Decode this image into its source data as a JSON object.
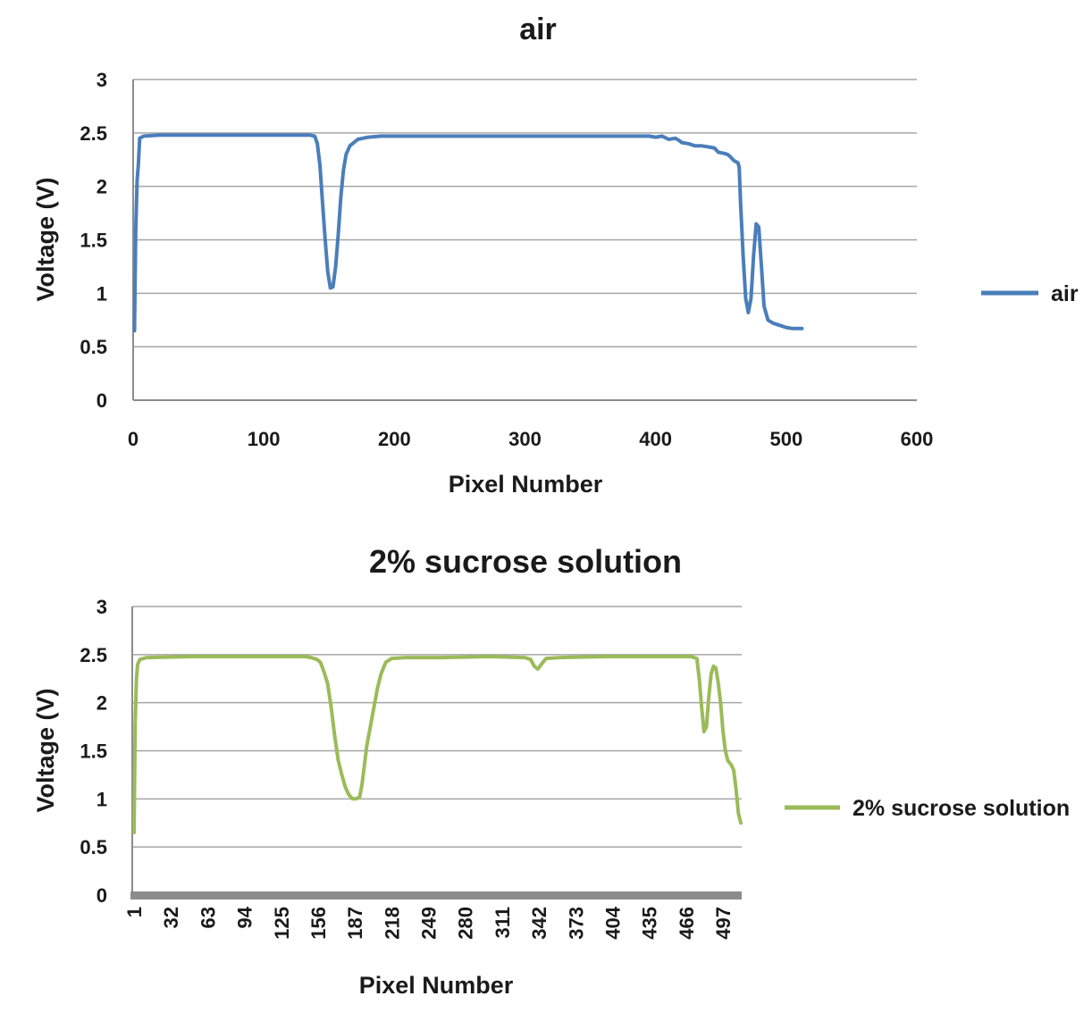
{
  "chart_data": [
    {
      "type": "line",
      "title": "air",
      "xlabel": "Pixel Number",
      "ylabel": "Voltage (V)",
      "xlim": [
        0,
        600
      ],
      "ylim": [
        0,
        3
      ],
      "x_ticks": [
        "0",
        "100",
        "200",
        "300",
        "400",
        "500",
        "600"
      ],
      "y_ticks": [
        "0",
        "0.5",
        "1",
        "1.5",
        "2",
        "2.5",
        "3"
      ],
      "grid": "horizontal",
      "legend": "right",
      "series": [
        {
          "name": "air",
          "color": "#4a7ebb",
          "points": [
            [
              1,
              0.65
            ],
            [
              2,
              1.6
            ],
            [
              3,
              2.05
            ],
            [
              4,
              2.2
            ],
            [
              5,
              2.45
            ],
            [
              8,
              2.47
            ],
            [
              20,
              2.48
            ],
            [
              60,
              2.48
            ],
            [
              100,
              2.48
            ],
            [
              135,
              2.48
            ],
            [
              139,
              2.47
            ],
            [
              141,
              2.4
            ],
            [
              143,
              2.2
            ],
            [
              145,
              1.85
            ],
            [
              147,
              1.5
            ],
            [
              149,
              1.2
            ],
            [
              151,
              1.05
            ],
            [
              153,
              1.06
            ],
            [
              155,
              1.25
            ],
            [
              157,
              1.55
            ],
            [
              159,
              1.9
            ],
            [
              161,
              2.15
            ],
            [
              163,
              2.3
            ],
            [
              166,
              2.38
            ],
            [
              172,
              2.44
            ],
            [
              180,
              2.46
            ],
            [
              190,
              2.47
            ],
            [
              230,
              2.47
            ],
            [
              280,
              2.47
            ],
            [
              320,
              2.47
            ],
            [
              360,
              2.47
            ],
            [
              395,
              2.47
            ],
            [
              400,
              2.46
            ],
            [
              405,
              2.47
            ],
            [
              410,
              2.44
            ],
            [
              415,
              2.45
            ],
            [
              418,
              2.43
            ],
            [
              420,
              2.41
            ],
            [
              425,
              2.4
            ],
            [
              430,
              2.38
            ],
            [
              435,
              2.38
            ],
            [
              440,
              2.37
            ],
            [
              445,
              2.36
            ],
            [
              448,
              2.32
            ],
            [
              452,
              2.31
            ],
            [
              455,
              2.3
            ],
            [
              457,
              2.28
            ],
            [
              460,
              2.24
            ],
            [
              463,
              2.22
            ],
            [
              464,
              2.18
            ],
            [
              465,
              1.85
            ],
            [
              467,
              1.35
            ],
            [
              469,
              0.95
            ],
            [
              471,
              0.82
            ],
            [
              473,
              0.95
            ],
            [
              475,
              1.35
            ],
            [
              477,
              1.65
            ],
            [
              479,
              1.62
            ],
            [
              481,
              1.25
            ],
            [
              483,
              0.88
            ],
            [
              486,
              0.75
            ],
            [
              490,
              0.72
            ],
            [
              495,
              0.7
            ],
            [
              500,
              0.68
            ],
            [
              505,
              0.67
            ],
            [
              512,
              0.67
            ]
          ]
        }
      ]
    },
    {
      "type": "line",
      "title": "2% sucrose solution",
      "xlabel": "Pixel Number",
      "ylabel": "Voltage (V)",
      "x_categories_range": [
        1,
        512
      ],
      "x_ticks": [
        "1",
        "32",
        "63",
        "94",
        "125",
        "156",
        "187",
        "218",
        "249",
        "280",
        "311",
        "342",
        "373",
        "404",
        "435",
        "466",
        "497"
      ],
      "y_ticks": [
        "0",
        "0.5",
        "1",
        "1.5",
        "2",
        "2.5",
        "3"
      ],
      "ylim": [
        0,
        3
      ],
      "grid": "horizontal",
      "legend": "right",
      "series": [
        {
          "name": "2% sucrose solution",
          "color": "#9bbb59",
          "points": [
            [
              1,
              0.65
            ],
            [
              2,
              1.8
            ],
            [
              3,
              2.25
            ],
            [
              4,
              2.4
            ],
            [
              6,
              2.45
            ],
            [
              12,
              2.47
            ],
            [
              50,
              2.48
            ],
            [
              100,
              2.48
            ],
            [
              145,
              2.48
            ],
            [
              150,
              2.47
            ],
            [
              155,
              2.45
            ],
            [
              158,
              2.42
            ],
            [
              161,
              2.32
            ],
            [
              164,
              2.2
            ],
            [
              167,
              1.95
            ],
            [
              170,
              1.65
            ],
            [
              173,
              1.4
            ],
            [
              176,
              1.25
            ],
            [
              179,
              1.12
            ],
            [
              182,
              1.04
            ],
            [
              185,
              1.0
            ],
            [
              188,
              1.0
            ],
            [
              191,
              1.02
            ],
            [
              193,
              1.15
            ],
            [
              195,
              1.35
            ],
            [
              197,
              1.55
            ],
            [
              200,
              1.75
            ],
            [
              203,
              1.95
            ],
            [
              206,
              2.15
            ],
            [
              209,
              2.3
            ],
            [
              213,
              2.42
            ],
            [
              218,
              2.46
            ],
            [
              230,
              2.47
            ],
            [
              260,
              2.47
            ],
            [
              300,
              2.48
            ],
            [
              330,
              2.47
            ],
            [
              335,
              2.45
            ],
            [
              338,
              2.38
            ],
            [
              341,
              2.35
            ],
            [
              344,
              2.4
            ],
            [
              348,
              2.46
            ],
            [
              360,
              2.47
            ],
            [
              400,
              2.48
            ],
            [
              440,
              2.48
            ],
            [
              470,
              2.48
            ],
            [
              475,
              2.46
            ],
            [
              477,
              2.25
            ],
            [
              479,
              1.95
            ],
            [
              481,
              1.7
            ],
            [
              483,
              1.75
            ],
            [
              485,
              2.05
            ],
            [
              487,
              2.3
            ],
            [
              489,
              2.38
            ],
            [
              491,
              2.36
            ],
            [
              493,
              2.2
            ],
            [
              495,
              2.0
            ],
            [
              497,
              1.7
            ],
            [
              499,
              1.5
            ],
            [
              501,
              1.4
            ],
            [
              504,
              1.35
            ],
            [
              506,
              1.3
            ],
            [
              508,
              1.1
            ],
            [
              510,
              0.85
            ],
            [
              512,
              0.75
            ]
          ]
        }
      ]
    }
  ]
}
